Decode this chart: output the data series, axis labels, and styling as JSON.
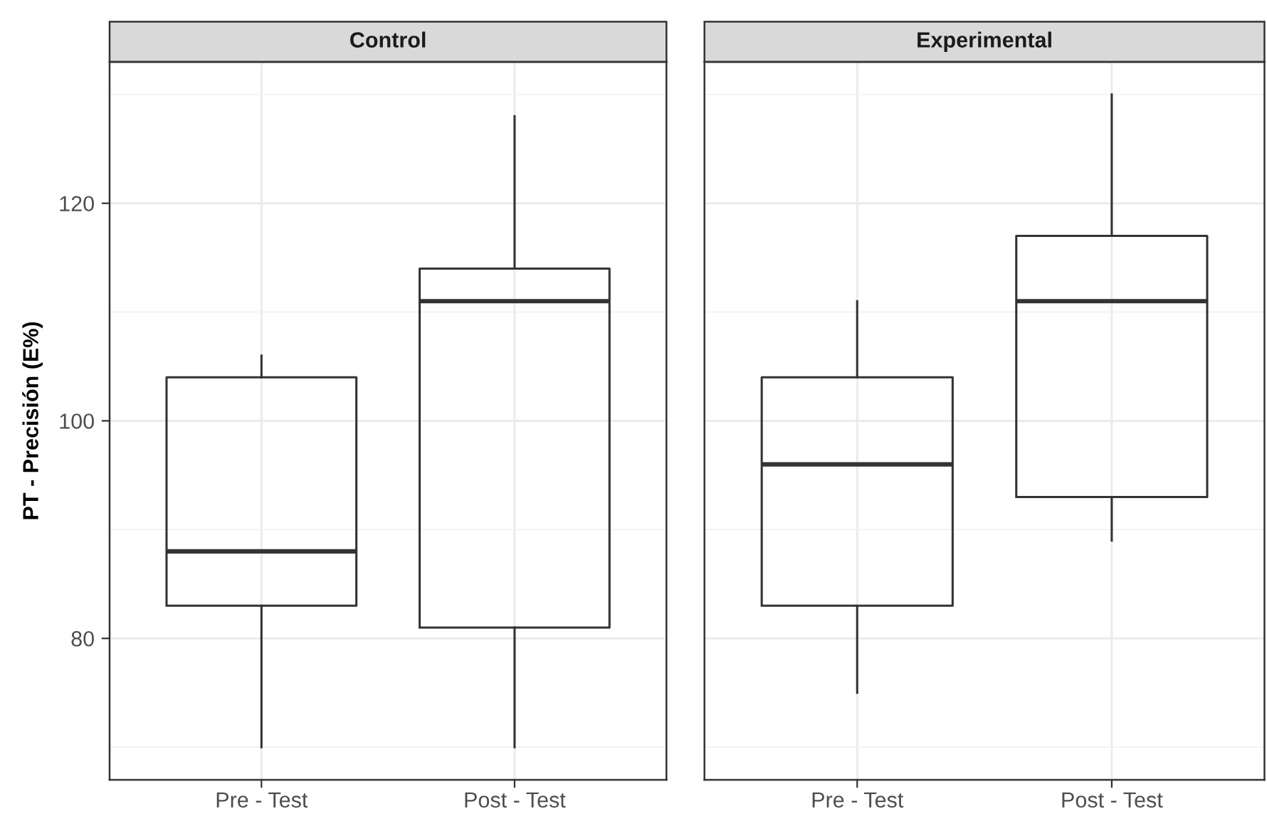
{
  "chart_data": [
    {
      "type": "box",
      "title": "Control",
      "ylabel": "PT - Precisión (E%)",
      "categories": [
        "Pre - Test",
        "Post - Test"
      ],
      "boxes": [
        {
          "low": 70,
          "q1": 83,
          "median": 88,
          "q3": 104,
          "high": 106
        },
        {
          "low": 70,
          "q1": 81,
          "median": 111,
          "q3": 114,
          "high": 128
        }
      ],
      "color": "#333333",
      "ylim": [
        67,
        133
      ],
      "yticks": [
        {
          "value": 70,
          "label": null
        },
        80,
        {
          "value": 90,
          "label": null
        },
        100,
        {
          "value": 110,
          "label": null
        },
        120,
        {
          "value": 130,
          "label": null
        }
      ],
      "grid": true
    },
    {
      "type": "box",
      "title": "Experimental",
      "categories": [
        "Pre - Test",
        "Post - Test"
      ],
      "boxes": [
        {
          "low": 75,
          "q1": 83,
          "median": 96,
          "q3": 104,
          "high": 111
        },
        {
          "low": 89,
          "q1": 93,
          "median": 111,
          "q3": 117,
          "high": 130
        }
      ],
      "color": "#333333",
      "ylim": [
        67,
        133
      ],
      "yticks": [
        {
          "value": 70,
          "label": null
        },
        80,
        {
          "value": 90,
          "label": null
        },
        100,
        {
          "value": 110,
          "label": null
        },
        120,
        {
          "value": 130,
          "label": null
        }
      ],
      "grid": true,
      "tick_labels": "x"
    }
  ]
}
